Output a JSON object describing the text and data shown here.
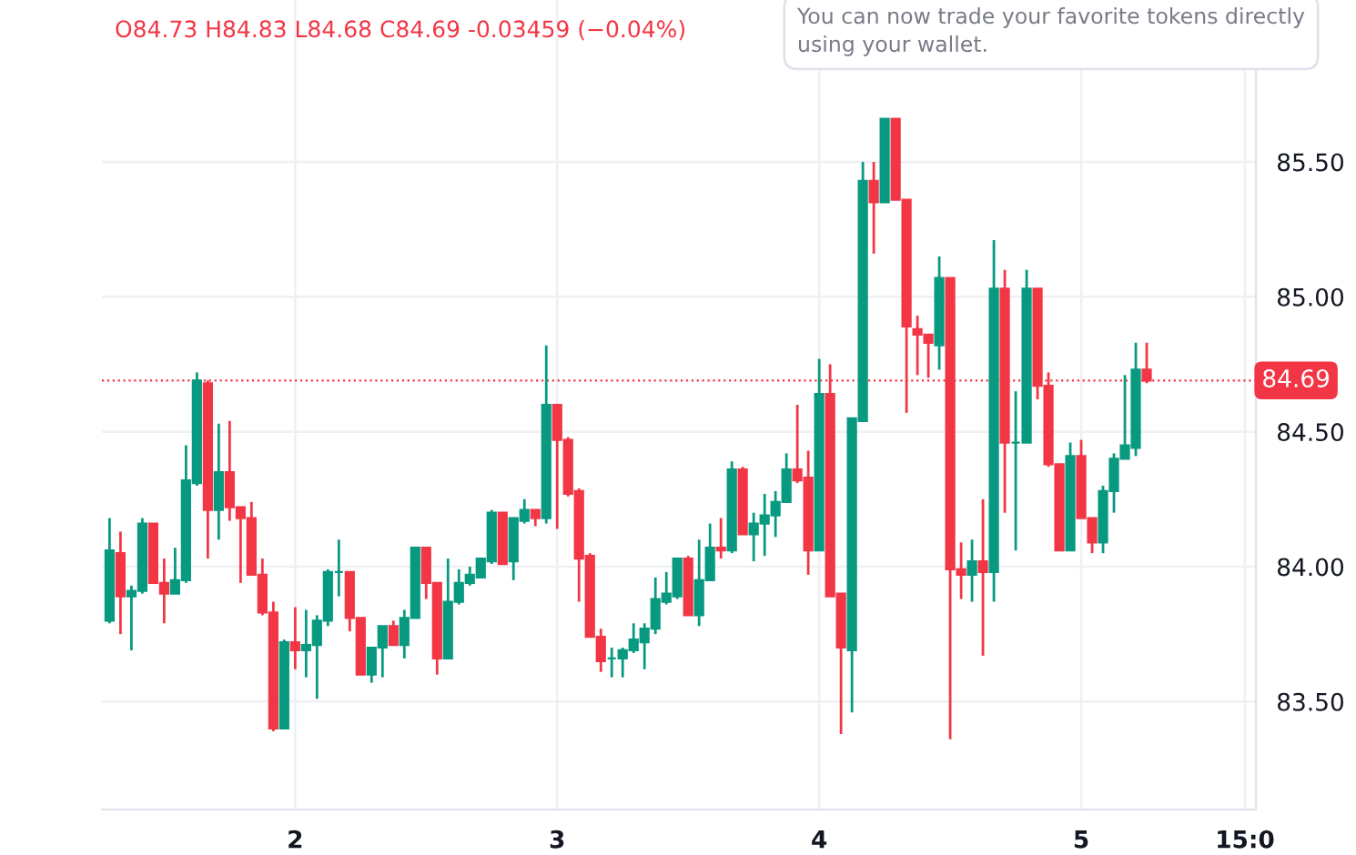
{
  "chart_data": {
    "type": "candlestick",
    "x": [
      1.2917,
      1.3333,
      1.375,
      1.4167,
      1.4583,
      1.5,
      1.5417,
      1.5833,
      1.625,
      1.6667,
      1.7083,
      1.75,
      1.7917,
      1.8333,
      1.875,
      1.9167,
      1.9583,
      2,
      2.0417,
      2.0833,
      2.125,
      2.1667,
      2.2083,
      2.25,
      2.2917,
      2.3333,
      2.375,
      2.4167,
      2.4583,
      2.5,
      2.5417,
      2.5833,
      2.625,
      2.6667,
      2.7083,
      2.75,
      2.7917,
      2.8333,
      2.875,
      2.9167,
      2.9583,
      3,
      3.0417,
      3.0833,
      3.125,
      3.1667,
      3.2083,
      3.25,
      3.2917,
      3.3333,
      3.375,
      3.4167,
      3.4583,
      3.5,
      3.5417,
      3.5833,
      3.625,
      3.6667,
      3.7083,
      3.75,
      3.7917,
      3.8333,
      3.875,
      3.9167,
      3.9583,
      4,
      4.0417,
      4.0833,
      4.125,
      4.1667,
      4.2083,
      4.25,
      4.2917,
      4.3333,
      4.375,
      4.4167,
      4.4583,
      4.5,
      4.5417,
      4.5833,
      4.625,
      4.6667,
      4.7083,
      4.75,
      4.7917,
      4.8333,
      4.875,
      4.9167,
      4.9583,
      5,
      5.0417,
      5.0833,
      5.125,
      5.1667,
      5.2083,
      5.25
    ],
    "ohlc": [
      [
        83.8,
        84.18,
        83.79,
        84.06
      ],
      [
        84.05,
        84.13,
        83.75,
        83.89
      ],
      [
        83.89,
        83.93,
        83.69,
        83.91
      ],
      [
        83.91,
        84.18,
        83.9,
        84.16
      ],
      [
        84.16,
        84.16,
        83.94,
        83.94
      ],
      [
        83.94,
        84.03,
        83.79,
        83.9
      ],
      [
        83.9,
        84.07,
        83.9,
        83.95
      ],
      [
        83.95,
        84.45,
        83.94,
        84.32
      ],
      [
        84.31,
        84.72,
        84.3,
        84.69
      ],
      [
        84.68,
        84.69,
        84.03,
        84.21
      ],
      [
        84.21,
        84.53,
        84.1,
        84.35
      ],
      [
        84.35,
        84.54,
        84.17,
        84.22
      ],
      [
        84.22,
        84.22,
        83.94,
        84.18
      ],
      [
        84.18,
        84.24,
        83.97,
        83.97
      ],
      [
        83.97,
        84.03,
        83.82,
        83.83
      ],
      [
        83.83,
        83.87,
        83.39,
        83.4
      ],
      [
        83.4,
        83.73,
        83.4,
        83.72
      ],
      [
        83.72,
        83.85,
        83.62,
        83.69
      ],
      [
        83.69,
        83.84,
        83.59,
        83.71
      ],
      [
        83.71,
        83.82,
        83.51,
        83.8
      ],
      [
        83.8,
        83.99,
        83.78,
        83.98
      ],
      [
        83.98,
        84.1,
        83.89,
        83.98
      ],
      [
        83.98,
        83.98,
        83.76,
        83.81
      ],
      [
        83.81,
        83.81,
        83.6,
        83.6
      ],
      [
        83.6,
        83.7,
        83.57,
        83.7
      ],
      [
        83.7,
        83.78,
        83.59,
        83.78
      ],
      [
        83.78,
        83.8,
        83.71,
        83.71
      ],
      [
        83.71,
        83.84,
        83.66,
        83.81
      ],
      [
        83.81,
        84.07,
        83.81,
        84.07
      ],
      [
        84.07,
        84.07,
        83.88,
        83.94
      ],
      [
        83.94,
        83.94,
        83.6,
        83.66
      ],
      [
        83.66,
        84.03,
        83.66,
        83.87
      ],
      [
        83.87,
        83.99,
        83.86,
        83.94
      ],
      [
        83.94,
        84.0,
        83.93,
        83.97
      ],
      [
        83.96,
        84.03,
        83.96,
        84.03
      ],
      [
        84.02,
        84.21,
        84.01,
        84.2
      ],
      [
        84.2,
        84.2,
        84.01,
        84.01
      ],
      [
        84.02,
        84.18,
        83.95,
        84.18
      ],
      [
        84.17,
        84.25,
        84.16,
        84.21
      ],
      [
        84.21,
        84.21,
        84.15,
        84.18
      ],
      [
        84.18,
        84.82,
        84.16,
        84.6
      ],
      [
        84.6,
        84.6,
        84.14,
        84.47
      ],
      [
        84.47,
        84.48,
        84.26,
        84.27
      ],
      [
        84.28,
        84.29,
        83.87,
        84.03
      ],
      [
        84.04,
        84.05,
        83.74,
        83.74
      ],
      [
        83.74,
        83.77,
        83.61,
        83.65
      ],
      [
        83.66,
        83.7,
        83.59,
        83.66
      ],
      [
        83.66,
        83.7,
        83.59,
        83.69
      ],
      [
        83.69,
        83.79,
        83.68,
        83.73
      ],
      [
        83.72,
        83.79,
        83.62,
        83.77
      ],
      [
        83.77,
        83.96,
        83.75,
        83.88
      ],
      [
        83.87,
        83.98,
        83.86,
        83.9
      ],
      [
        83.89,
        84.03,
        83.88,
        84.03
      ],
      [
        84.03,
        84.04,
        83.82,
        83.82
      ],
      [
        83.82,
        84.1,
        83.78,
        83.95
      ],
      [
        83.95,
        84.16,
        83.95,
        84.07
      ],
      [
        84.07,
        84.18,
        84.03,
        84.06
      ],
      [
        84.06,
        84.39,
        84.05,
        84.36
      ],
      [
        84.36,
        84.37,
        84.12,
        84.12
      ],
      [
        84.12,
        84.2,
        84.02,
        84.16
      ],
      [
        84.16,
        84.27,
        84.04,
        84.19
      ],
      [
        84.19,
        84.28,
        84.11,
        84.24
      ],
      [
        84.24,
        84.42,
        84.24,
        84.36
      ],
      [
        84.36,
        84.6,
        84.31,
        84.32
      ],
      [
        84.33,
        84.43,
        83.97,
        84.06
      ],
      [
        84.06,
        84.77,
        84.06,
        84.64
      ],
      [
        84.64,
        84.75,
        83.89,
        83.89
      ],
      [
        83.9,
        83.9,
        83.38,
        83.7
      ],
      [
        83.69,
        84.55,
        83.46,
        84.55
      ],
      [
        84.54,
        85.5,
        84.54,
        85.43
      ],
      [
        85.43,
        85.5,
        85.16,
        85.35
      ],
      [
        85.35,
        85.66,
        85.35,
        85.66
      ],
      [
        85.66,
        85.66,
        85.36,
        85.36
      ],
      [
        85.36,
        85.36,
        84.57,
        84.89
      ],
      [
        84.88,
        84.93,
        84.71,
        84.86
      ],
      [
        84.86,
        84.86,
        84.7,
        84.83
      ],
      [
        84.82,
        85.15,
        84.73,
        85.07
      ],
      [
        85.07,
        85.07,
        83.36,
        83.99
      ],
      [
        83.99,
        84.09,
        83.88,
        83.97
      ],
      [
        83.97,
        84.1,
        83.87,
        84.02
      ],
      [
        84.02,
        84.25,
        83.67,
        83.98
      ],
      [
        83.98,
        85.21,
        83.87,
        85.03
      ],
      [
        85.03,
        85.1,
        84.2,
        84.46
      ],
      [
        84.46,
        84.65,
        84.06,
        84.46
      ],
      [
        84.46,
        85.1,
        84.46,
        85.03
      ],
      [
        85.03,
        85.03,
        84.62,
        84.67
      ],
      [
        84.67,
        84.72,
        84.37,
        84.38
      ],
      [
        84.38,
        84.38,
        84.06,
        84.06
      ],
      [
        84.06,
        84.46,
        84.06,
        84.41
      ],
      [
        84.41,
        84.47,
        84.18,
        84.18
      ],
      [
        84.18,
        84.18,
        84.05,
        84.09
      ],
      [
        84.09,
        84.3,
        84.05,
        84.28
      ],
      [
        84.28,
        84.42,
        84.2,
        84.4
      ],
      [
        84.4,
        84.71,
        84.4,
        84.45
      ],
      [
        84.44,
        84.83,
        84.41,
        84.73
      ],
      [
        84.73,
        84.83,
        84.68,
        84.69
      ]
    ],
    "colors": [
      "#089981",
      "#f23645",
      "#089981",
      "#089981",
      "#f23645",
      "#f23645",
      "#089981",
      "#089981",
      "#089981",
      "#f23645",
      "#089981",
      "#f23645",
      "#f23645",
      "#f23645",
      "#f23645",
      "#f23645",
      "#089981",
      "#f23645",
      "#089981",
      "#089981",
      "#089981",
      "#089981",
      "#f23645",
      "#f23645",
      "#089981",
      "#089981",
      "#f23645",
      "#089981",
      "#089981",
      "#f23645",
      "#f23645",
      "#089981",
      "#089981",
      "#089981",
      "#089981",
      "#089981",
      "#f23645",
      "#089981",
      "#089981",
      "#f23645",
      "#089981",
      "#f23645",
      "#f23645",
      "#f23645",
      "#f23645",
      "#f23645",
      "#089981",
      "#089981",
      "#089981",
      "#089981",
      "#089981",
      "#089981",
      "#089981",
      "#f23645",
      "#089981",
      "#089981",
      "#f23645",
      "#089981",
      "#f23645",
      "#089981",
      "#089981",
      "#089981",
      "#089981",
      "#f23645",
      "#f23645",
      "#089981",
      "#f23645",
      "#f23645",
      "#089981",
      "#089981",
      "#f23645",
      "#089981",
      "#f23645",
      "#f23645",
      "#f23645",
      "#f23645",
      "#089981",
      "#f23645",
      "#f23645",
      "#089981",
      "#f23645",
      "#089981",
      "#f23645",
      "#089981",
      "#089981",
      "#f23645",
      "#f23645",
      "#f23645",
      "#089981",
      "#f23645",
      "#f23645",
      "#089981",
      "#089981",
      "#089981",
      "#089981",
      "#f23645"
    ],
    "xlim": [
      1.2625,
      5.6667
    ],
    "xticks": [
      2,
      3,
      4,
      5,
      {
        "value": 5.625,
        "label": "15:0"
      }
    ],
    "ylim": [
      83.1,
      86.1
    ],
    "yticks": [
      {
        "value": 83.5,
        "label": "83.50"
      },
      {
        "value": 84,
        "label": "84.00"
      },
      {
        "value": 84.5,
        "label": "84.50"
      },
      {
        "value": 85,
        "label": "85.00"
      },
      {
        "value": 85.5,
        "label": "85.50"
      }
    ],
    "grid": true,
    "ref_lines": [
      {
        "axis": "y",
        "value": 84.69,
        "label": "84.69",
        "color": "#f23645",
        "line_style": "dotted"
      }
    ],
    "annotations": [
      "O84.73 H84.83 L84.68 C84.69 -0.03459 (−0.04%)",
      "You can now trade your favorite tokens directly using your wallet."
    ]
  }
}
